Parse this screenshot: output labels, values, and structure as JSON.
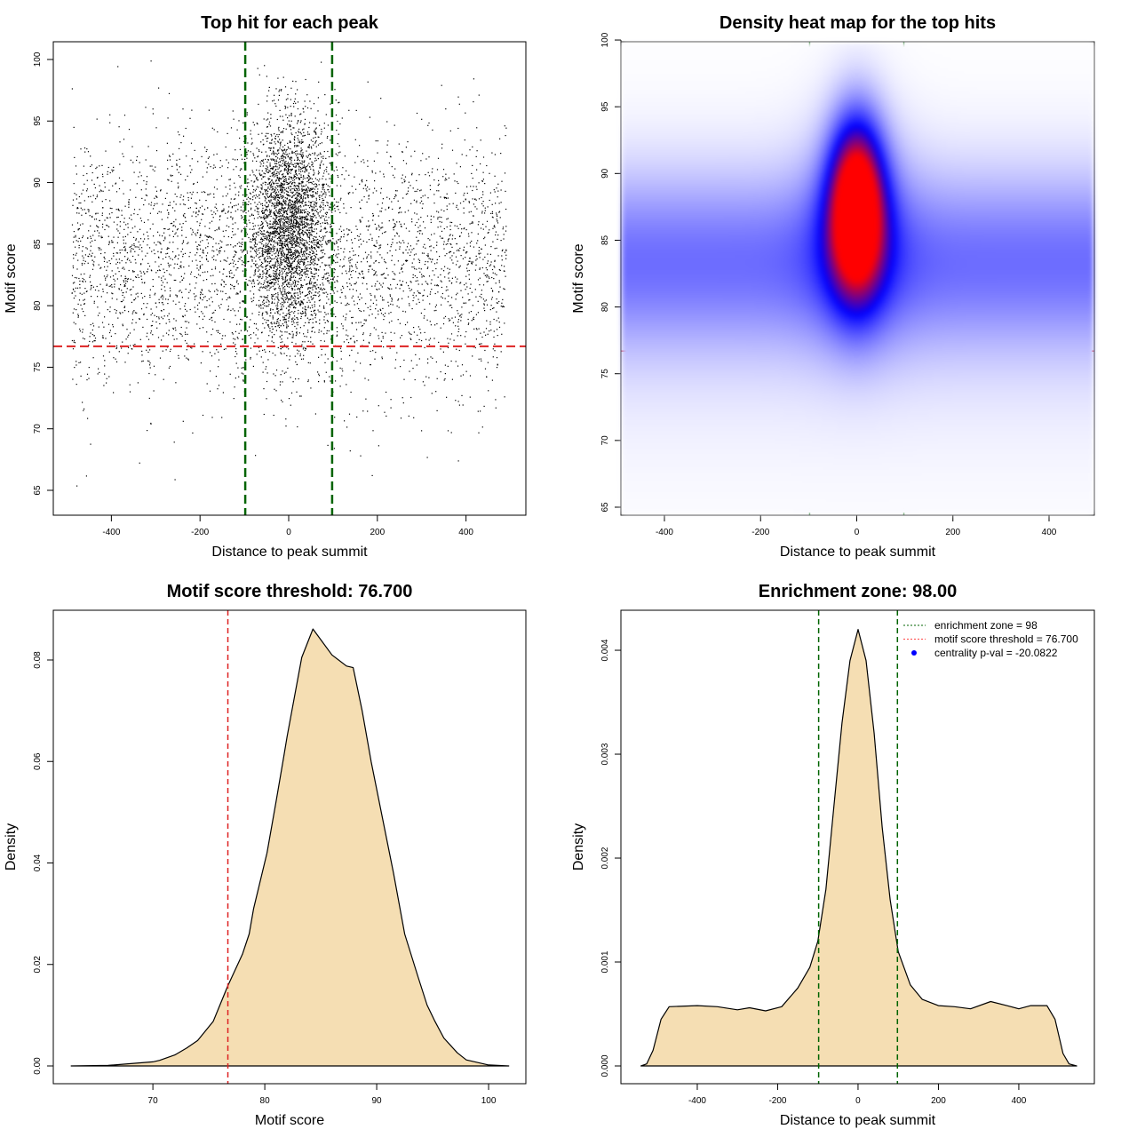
{
  "chart_data": [
    {
      "type": "scatter",
      "title": "Top hit for each peak",
      "xlabel": "Distance to peak summit",
      "ylabel": "Motif score",
      "xlim": [
        -531,
        535
      ],
      "ylim": [
        62.98,
        101.44
      ],
      "xticks": [
        -400,
        -200,
        0,
        200,
        400
      ],
      "yticks": [
        65,
        70,
        75,
        80,
        85,
        90,
        95,
        100
      ],
      "vlines": [
        -98,
        98
      ],
      "hline": 76.7,
      "points_summary": {
        "background": {
          "n": 3800,
          "x_range": [
            -490,
            490
          ],
          "y_mean": 83.5,
          "y_sd": 5.2
        },
        "central": {
          "n": 3200,
          "x_sd": 45,
          "y_mean": 86.5,
          "y_sd": 4.3
        }
      },
      "colors": {
        "points": "#000000",
        "vlines": "#006400",
        "hline": "#dd2222"
      }
    },
    {
      "type": "heatmap",
      "title": "Density heat map for the top hits",
      "xlabel": "Distance to peak summit",
      "ylabel": "Motif score",
      "xlim": [
        -490.5,
        494.2
      ],
      "ylim": [
        64.4,
        99.87
      ],
      "xticks": [
        -400,
        -200,
        0,
        200,
        400
      ],
      "yticks": [
        65,
        70,
        75,
        80,
        85,
        90,
        95,
        100
      ],
      "vlines": [
        -98,
        98
      ],
      "hline": 76.7,
      "density_peak": {
        "x": 0,
        "y": 87.5
      },
      "colors": {
        "low": "#ffffff",
        "mid": "#0000ff",
        "high": "#ff0000",
        "vlines": "#006400",
        "hline": "#dd2222"
      }
    },
    {
      "type": "area",
      "title": "Motif score threshold: 76.700",
      "xlabel": "Motif score",
      "ylabel": "Density",
      "xlim": [
        61.1,
        103.33
      ],
      "ylim": [
        -0.0035,
        0.0898
      ],
      "xticks": [
        70,
        80,
        90,
        100
      ],
      "yticks": [
        0.0,
        0.02,
        0.04,
        0.06,
        0.08
      ],
      "ytick_labels": [
        "0.00",
        "0.02",
        "0.04",
        "0.06",
        "0.08"
      ],
      "vline": 76.7,
      "x": [
        62.7,
        66,
        70,
        70.6,
        72,
        73,
        74,
        75.4,
        76.7,
        78,
        78.6,
        79,
        80.2,
        81,
        81.7,
        82,
        83.3,
        84.3,
        85,
        86,
        87.3,
        87.9,
        88.7,
        89.5,
        90.5,
        91.5,
        92.5,
        93.7,
        94.5,
        95.2,
        96,
        97.2,
        98,
        100,
        101.8
      ],
      "y": [
        0,
        0.0001,
        0.0008,
        0.0011,
        0.0022,
        0.0035,
        0.005,
        0.0088,
        0.0158,
        0.022,
        0.026,
        0.031,
        0.042,
        0.052,
        0.061,
        0.065,
        0.0805,
        0.0861,
        0.084,
        0.081,
        0.0788,
        0.0785,
        0.07,
        0.06,
        0.049,
        0.038,
        0.026,
        0.0175,
        0.012,
        0.0088,
        0.0055,
        0.0026,
        0.0012,
        0.0002,
        0
      ],
      "colors": {
        "fill": "#f5deb3",
        "line": "#000000",
        "vline": "#dd2222"
      }
    },
    {
      "type": "area",
      "title": "Enrichment zone: 98.00",
      "xlabel": "Distance to peak summit",
      "ylabel": "Density",
      "xlim": [
        -590,
        588
      ],
      "ylim": [
        -0.000171,
        0.004385
      ],
      "xticks": [
        -400,
        -200,
        0,
        200,
        400
      ],
      "yticks": [
        0,
        0.001,
        0.002,
        0.003,
        0.004
      ],
      "ytick_labels": [
        "0.000",
        "0.001",
        "0.002",
        "0.003",
        "0.004"
      ],
      "vlines": [
        -98,
        98
      ],
      "x": [
        -540,
        -526,
        -510,
        -490,
        -470,
        -400,
        -350,
        -300,
        -270,
        -230,
        -190,
        -150,
        -120,
        -100,
        -80,
        -60,
        -40,
        -20,
        0,
        20,
        40,
        60,
        80,
        100,
        130,
        160,
        200,
        240,
        280,
        330,
        370,
        400,
        430,
        470,
        490,
        510,
        525,
        544
      ],
      "y": [
        0,
        2e-05,
        0.00015,
        0.00045,
        0.00057,
        0.00058,
        0.00057,
        0.00054,
        0.00056,
        0.00053,
        0.00057,
        0.00075,
        0.00095,
        0.0012,
        0.0017,
        0.0025,
        0.0033,
        0.0039,
        0.0042,
        0.0039,
        0.0032,
        0.0023,
        0.0016,
        0.0011,
        0.00078,
        0.00064,
        0.00058,
        0.00057,
        0.00055,
        0.00062,
        0.00058,
        0.00055,
        0.00058,
        0.00058,
        0.00045,
        0.00012,
        2e-05,
        0
      ],
      "legend": {
        "placement": "top-right",
        "entries": [
          {
            "label": "enrichment zone = 98",
            "style": "dotted",
            "color": "#006400"
          },
          {
            "label": "motif score threshold = 76.700",
            "style": "dotted",
            "color": "#ff4444"
          },
          {
            "label": "centrality p-val = -20.0822",
            "style": "point",
            "color": "#0000ff"
          }
        ]
      },
      "colors": {
        "fill": "#f5deb3",
        "line": "#000000",
        "vlines": "#006400"
      }
    }
  ]
}
